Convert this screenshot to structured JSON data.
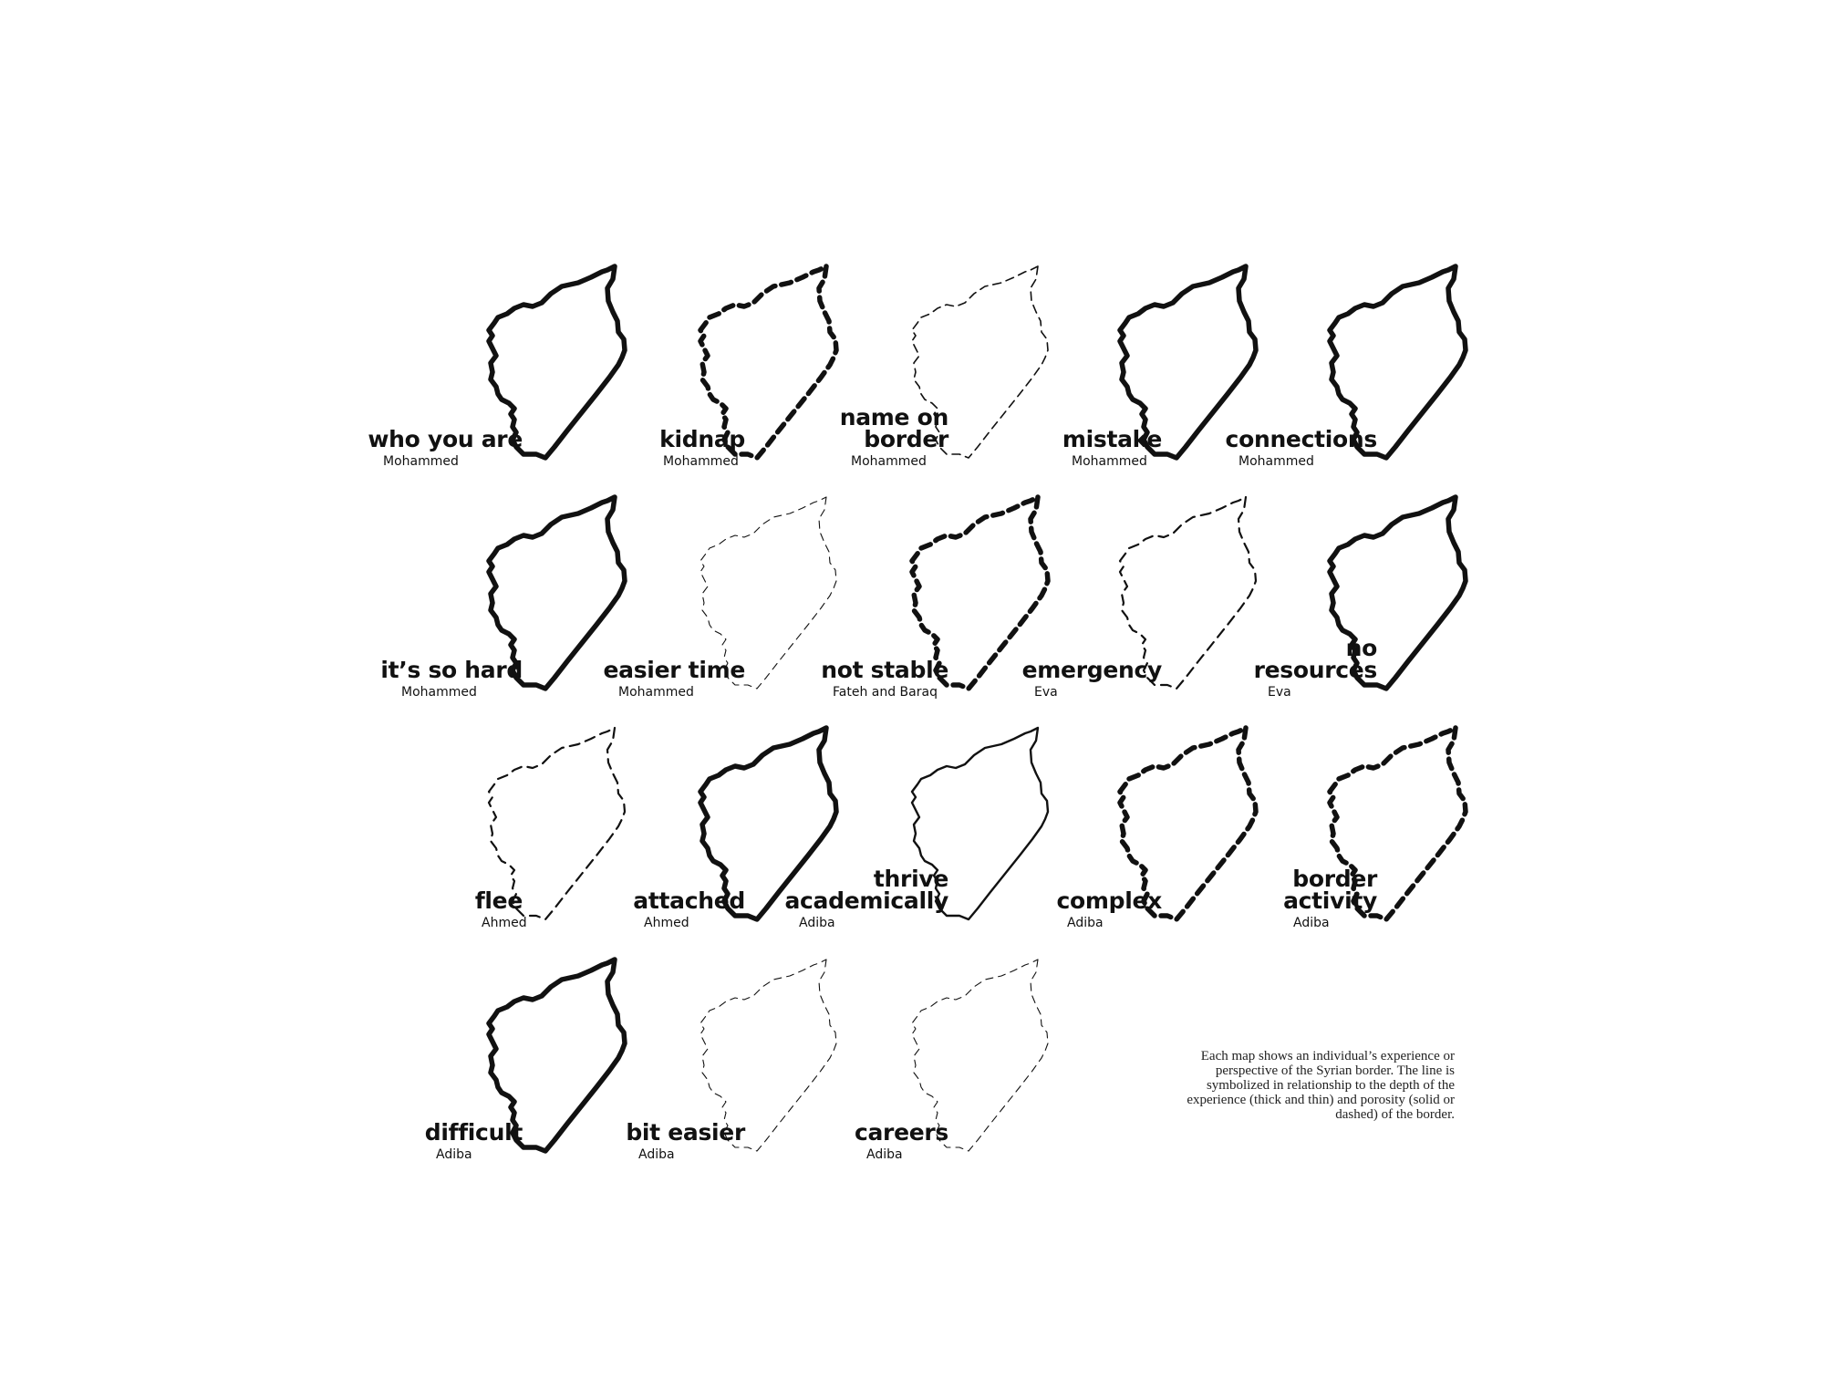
{
  "maps": [
    {
      "label": "who you are",
      "person": "Mohammed",
      "line": "thick-solid"
    },
    {
      "label": "kidnap",
      "person": "Mohammed",
      "line": "thick-dashed"
    },
    {
      "label": "name on\nborder",
      "person": "Mohammed",
      "line": "thin-dashed"
    },
    {
      "label": "mistake",
      "person": "Mohammed",
      "line": "thick-solid"
    },
    {
      "label": "connections",
      "person": "Mohammed",
      "line": "thick-solid"
    },
    {
      "label": "it’s so hard",
      "person": "Mohammed",
      "line": "thick-solid"
    },
    {
      "label": "easier time",
      "person": "Mohammed",
      "line": "hairline-dashed"
    },
    {
      "label": "not stable",
      "person": "Fateh and Baraq",
      "line": "thick-dashed"
    },
    {
      "label": "emergency",
      "person": "Eva",
      "line": "medium-dashed"
    },
    {
      "label": "no\nresources",
      "person": "Eva",
      "line": "thick-solid"
    },
    {
      "label": "flee",
      "person": "Ahmed",
      "line": "medium-dashed"
    },
    {
      "label": "attached",
      "person": "Ahmed",
      "line": "thick-solid"
    },
    {
      "label": "thrive\nacademically",
      "person": "Adiba",
      "line": "medium-solid"
    },
    {
      "label": "complex",
      "person": "Adiba",
      "line": "thick-dashed"
    },
    {
      "label": "border\nactivity",
      "person": "Adiba",
      "line": "thick-dashed"
    },
    {
      "label": "difficult",
      "person": "Adiba",
      "line": "thick-solid"
    },
    {
      "label": "bit easier",
      "person": "Adiba",
      "line": "hairline-dashed"
    },
    {
      "label": "careers",
      "person": "Adiba",
      "line": "hairline-dashed"
    }
  ],
  "caption": "Each map shows an individual’s experience or perspective of the Syrian border. The line is symbolized in relationship to the depth of the experience (thick and thin) and porosity (solid or dashed) of the border.",
  "colors": {
    "line": "#111111",
    "background": "#ffffff"
  }
}
